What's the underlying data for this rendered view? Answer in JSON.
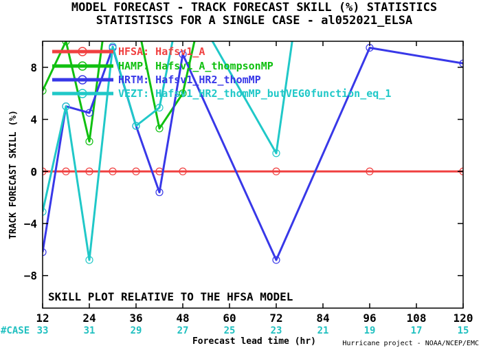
{
  "chart_data": {
    "type": "line",
    "title": "MODEL FORECAST - TRACK FORECAST SKILL (%) STATISTICS",
    "subtitle": "STATISTISCS FOR A SINGLE CASE - al052021_ELSA",
    "xlabel": "Forecast lead time (hr)",
    "ylabel": "TRACK FORECAST SKILL (%)",
    "xlim": [
      12,
      120
    ],
    "ylim": [
      -10.5,
      10
    ],
    "x_ticks": [
      12,
      24,
      36,
      48,
      60,
      72,
      84,
      96,
      108,
      120
    ],
    "y_ticks": [
      -8,
      -4,
      0,
      4,
      8
    ],
    "y_tick_labels": [
      "−8",
      "−4",
      "0",
      "4",
      "8"
    ],
    "case_label": "#CASE",
    "case_counts": [
      "33",
      "31",
      "29",
      "27",
      "25",
      "23",
      "21",
      "19",
      "17",
      "15"
    ],
    "annotation": "SKILL PLOT RELATIVE TO THE HFSA MODEL",
    "credit": "Hurricane project - NOAA/NCEP/EMC",
    "grid": false,
    "legend_position": "top-left",
    "series": [
      {
        "name": "HFSA: Hafsv1_A",
        "color": "#f04040",
        "points": [
          [
            12,
            0
          ],
          [
            18,
            0
          ],
          [
            24,
            0
          ],
          [
            30,
            0
          ],
          [
            36,
            0
          ],
          [
            42,
            0
          ],
          [
            48,
            0
          ],
          [
            72,
            0
          ],
          [
            96,
            0
          ],
          [
            120,
            0
          ]
        ]
      },
      {
        "name": "HAMP: Hafsv1_A_thompsonMP",
        "color": "#10c010",
        "points": [
          [
            12,
            6.2
          ],
          [
            18,
            10
          ],
          [
            24,
            2.3
          ],
          [
            30,
            16
          ],
          [
            36,
            12
          ],
          [
            42,
            3.3
          ],
          [
            48,
            6
          ],
          [
            54,
            14
          ]
        ]
      },
      {
        "name": "HRTM: Hafsv1_HR2_thomMP",
        "color": "#3838e8",
        "points": [
          [
            12,
            -6.2
          ],
          [
            18,
            5
          ],
          [
            24,
            4.5
          ],
          [
            30,
            9.5
          ],
          [
            36,
            3.5
          ],
          [
            42,
            -1.6
          ],
          [
            48,
            9
          ],
          [
            72,
            -6.8
          ],
          [
            96,
            9.5
          ],
          [
            120,
            8.3
          ]
        ]
      },
      {
        "name": "VEZT: Hafsv1_HR2_thomMP_butVEG0function_eq_1",
        "color": "#20c8c8",
        "points": [
          [
            12,
            -3.1
          ],
          [
            18,
            5
          ],
          [
            24,
            -6.8
          ],
          [
            30,
            9.6
          ],
          [
            36,
            3.5
          ],
          [
            42,
            4.9
          ],
          [
            48,
            14
          ],
          [
            72,
            1.4
          ],
          [
            78,
            14
          ]
        ]
      }
    ]
  }
}
